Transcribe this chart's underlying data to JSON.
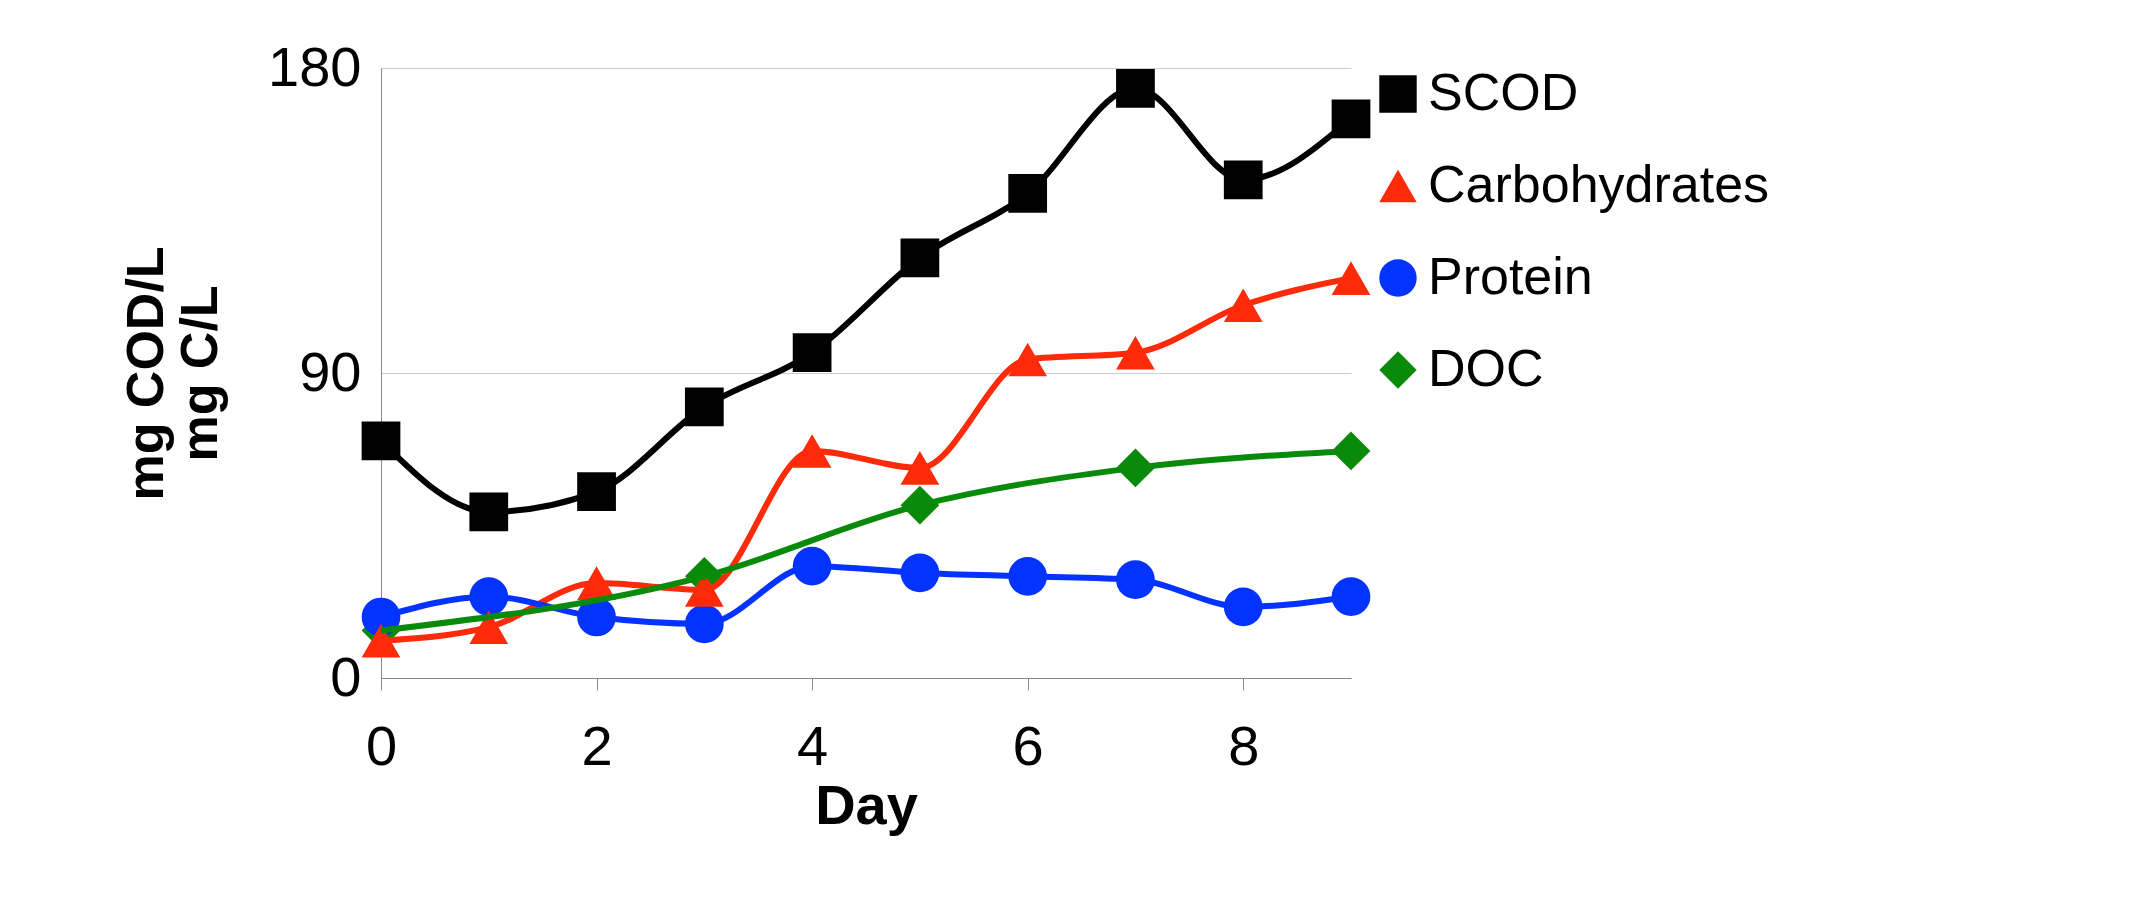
{
  "chart_data": {
    "type": "line",
    "xlabel": "Day",
    "ylabel": [
      "mg COD/L",
      "mg C/L"
    ],
    "xlim": [
      0,
      9
    ],
    "xticks": [
      0,
      2,
      4,
      6,
      8
    ],
    "ylim": [
      0,
      180
    ],
    "yticks": [
      0,
      90,
      180
    ],
    "grid": "y",
    "legend": "right",
    "line_style": "solid",
    "series": [
      {
        "name": "SCOD",
        "color": "#000000",
        "marker": "square",
        "x": [
          0,
          1,
          2,
          3,
          4,
          5,
          6,
          7,
          8,
          9
        ],
        "values": [
          70,
          49,
          55,
          80,
          96,
          124,
          143,
          174,
          147,
          165
        ]
      },
      {
        "name": "Carbohydrates",
        "color": "#ff2a0a",
        "marker": "triangle",
        "x": [
          0,
          1,
          2,
          3,
          4,
          5,
          6,
          7,
          8,
          9
        ],
        "values": [
          11,
          15,
          28,
          26,
          67,
          62,
          94,
          96,
          110,
          118
        ]
      },
      {
        "name": "Protein",
        "color": "#0433ff",
        "marker": "circle",
        "x": [
          0,
          1,
          2,
          3,
          4,
          5,
          6,
          7,
          8,
          9
        ],
        "values": [
          18,
          24,
          18,
          16,
          33,
          31,
          30,
          29,
          21,
          24
        ]
      },
      {
        "name": "DOC",
        "color": "#0a8a0a",
        "marker": "diamond",
        "x": [
          0,
          3,
          5,
          7,
          9
        ],
        "values": [
          14,
          30,
          51,
          62,
          67
        ]
      }
    ]
  }
}
